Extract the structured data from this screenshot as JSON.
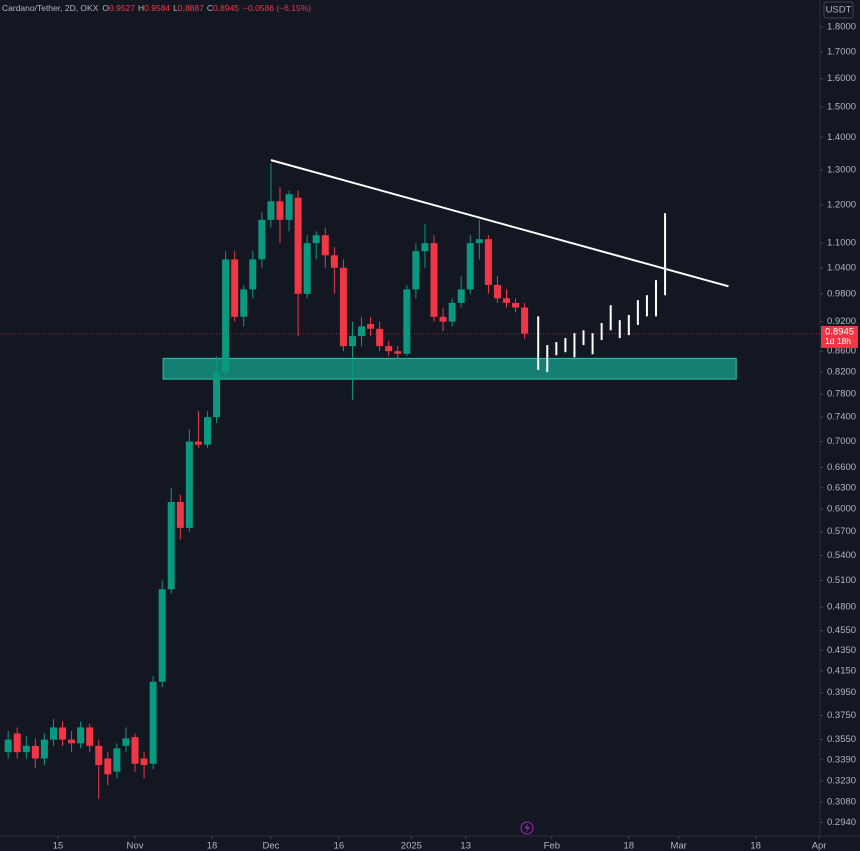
{
  "chart_data": {
    "type": "candlestick",
    "header": {
      "title": "Cardano/Tether, 2D, OKX",
      "ohlc": [
        {
          "label": "O",
          "value": "0.9527"
        },
        {
          "label": "H",
          "value": "0.9584"
        },
        {
          "label": "L",
          "value": "0.8887"
        },
        {
          "label": "C",
          "value": "0.8945"
        }
      ],
      "change": "−0.0586 (−6.15%)"
    },
    "currency": "USDT",
    "log_scale": true,
    "up_color": "#089981",
    "down_color": "#f23645",
    "xlim": [
      1.2,
      182.2
    ],
    "ylim": [
      0.285,
      1.914
    ],
    "xticks": [
      {
        "value": 14,
        "label": "15"
      },
      {
        "value": 31,
        "label": "Nov"
      },
      {
        "value": 48,
        "label": "18"
      },
      {
        "value": 61,
        "label": "Dec"
      },
      {
        "value": 76,
        "label": "16"
      },
      {
        "value": 92,
        "label": "2025"
      },
      {
        "value": 104,
        "label": "13"
      },
      {
        "value": 123,
        "label": "Feb"
      },
      {
        "value": 140,
        "label": "18"
      },
      {
        "value": 151,
        "label": "Mar"
      },
      {
        "value": 168,
        "label": "18"
      },
      {
        "value": 182,
        "label": "Apr"
      }
    ],
    "yticks": [
      {
        "value": 1.8,
        "label": "1.8000"
      },
      {
        "value": 1.7,
        "label": "1.7000"
      },
      {
        "value": 1.6,
        "label": "1.6000"
      },
      {
        "value": 1.5,
        "label": "1.5000"
      },
      {
        "value": 1.4,
        "label": "1.4000"
      },
      {
        "value": 1.3,
        "label": "1.3000"
      },
      {
        "value": 1.2,
        "label": "1.2000"
      },
      {
        "value": 1.1,
        "label": "1.1000"
      },
      {
        "value": 1.04,
        "label": "1.0400"
      },
      {
        "value": 0.98,
        "label": "0.9800"
      },
      {
        "value": 0.92,
        "label": "0.9200"
      },
      {
        "value": 0.86,
        "label": "0.8600"
      },
      {
        "value": 0.82,
        "label": "0.8200"
      },
      {
        "value": 0.78,
        "label": "0.7800"
      },
      {
        "value": 0.74,
        "label": "0.7400"
      },
      {
        "value": 0.7,
        "label": "0.7000"
      },
      {
        "value": 0.66,
        "label": "0.6600"
      },
      {
        "value": 0.63,
        "label": "0.6300"
      },
      {
        "value": 0.6,
        "label": "0.6000"
      },
      {
        "value": 0.57,
        "label": "0.5700"
      },
      {
        "value": 0.54,
        "label": "0.5400"
      },
      {
        "value": 0.51,
        "label": "0.5100"
      },
      {
        "value": 0.48,
        "label": "0.4800"
      },
      {
        "value": 0.455,
        "label": "0.4550"
      },
      {
        "value": 0.435,
        "label": "0.4350"
      },
      {
        "value": 0.415,
        "label": "0.4150"
      },
      {
        "value": 0.395,
        "label": "0.3950"
      },
      {
        "value": 0.375,
        "label": "0.3750"
      },
      {
        "value": 0.355,
        "label": "0.3550"
      },
      {
        "value": 0.339,
        "label": "0.3390"
      },
      {
        "value": 0.323,
        "label": "0.3230"
      },
      {
        "value": 0.308,
        "label": "0.3080"
      },
      {
        "value": 0.294,
        "label": "0.2940"
      }
    ],
    "candles": {
      "x": [
        3,
        5,
        7,
        9,
        11,
        13,
        15,
        17,
        19,
        21,
        23,
        25,
        27,
        29,
        31,
        33,
        35,
        37,
        39,
        41,
        43,
        45,
        47,
        49,
        51,
        53,
        55,
        57,
        59,
        61,
        63,
        65,
        67,
        69,
        71,
        73,
        75,
        77,
        79,
        81,
        83,
        85,
        87,
        89,
        91,
        93,
        95,
        97,
        99,
        101,
        103,
        105,
        107,
        109,
        111,
        113,
        115,
        117
      ],
      "open": [
        0.345,
        0.36,
        0.345,
        0.35,
        0.34,
        0.355,
        0.365,
        0.355,
        0.352,
        0.365,
        0.35,
        0.34,
        0.33,
        0.35,
        0.357,
        0.34,
        0.336,
        0.405,
        0.5,
        0.61,
        0.575,
        0.7,
        0.695,
        0.74,
        0.82,
        1.06,
        0.93,
        0.99,
        1.06,
        1.16,
        1.21,
        1.16,
        1.22,
        0.98,
        1.1,
        1.12,
        1.07,
        1.04,
        0.87,
        0.89,
        0.915,
        0.905,
        0.87,
        0.86,
        0.855,
        0.99,
        1.08,
        1.1,
        0.93,
        0.92,
        0.96,
        0.99,
        1.1,
        1.11,
        1.0,
        0.97,
        0.96,
        0.95
      ],
      "high": [
        0.362,
        0.365,
        0.358,
        0.356,
        0.36,
        0.372,
        0.37,
        0.362,
        0.37,
        0.368,
        0.355,
        0.345,
        0.352,
        0.365,
        0.36,
        0.345,
        0.41,
        0.51,
        0.63,
        0.62,
        0.72,
        0.75,
        0.75,
        0.85,
        1.08,
        1.08,
        1.0,
        1.08,
        1.18,
        1.32,
        1.25,
        1.24,
        1.24,
        1.12,
        1.13,
        1.14,
        1.09,
        1.06,
        0.92,
        0.93,
        0.93,
        0.92,
        0.88,
        0.87,
        1.0,
        1.1,
        1.15,
        1.12,
        0.95,
        0.97,
        1.02,
        1.12,
        1.16,
        1.12,
        1.02,
        0.99,
        0.97,
        0.96
      ],
      "low": [
        0.34,
        0.34,
        0.34,
        0.333,
        0.335,
        0.35,
        0.35,
        0.345,
        0.348,
        0.345,
        0.31,
        0.32,
        0.325,
        0.345,
        0.33,
        0.325,
        0.332,
        0.4,
        0.495,
        0.56,
        0.57,
        0.69,
        0.69,
        0.73,
        0.81,
        0.92,
        0.91,
        0.97,
        1.04,
        1.14,
        1.1,
        1.13,
        0.89,
        0.97,
        1.06,
        1.04,
        0.98,
        0.86,
        0.77,
        0.87,
        0.89,
        0.86,
        0.85,
        0.845,
        0.85,
        0.97,
        1.04,
        0.92,
        0.9,
        0.91,
        0.95,
        0.98,
        1.06,
        0.98,
        0.96,
        0.95,
        0.94,
        0.885
      ],
      "close": [
        0.355,
        0.345,
        0.35,
        0.34,
        0.355,
        0.365,
        0.355,
        0.352,
        0.365,
        0.35,
        0.335,
        0.328,
        0.348,
        0.356,
        0.336,
        0.335,
        0.405,
        0.5,
        0.61,
        0.575,
        0.7,
        0.695,
        0.74,
        0.82,
        1.06,
        0.93,
        0.99,
        1.06,
        1.16,
        1.21,
        1.16,
        1.23,
        0.98,
        1.1,
        1.12,
        1.07,
        1.04,
        0.87,
        0.89,
        0.91,
        0.905,
        0.87,
        0.86,
        0.855,
        0.99,
        1.08,
        1.1,
        0.93,
        0.92,
        0.96,
        0.99,
        1.1,
        1.11,
        1.0,
        0.97,
        0.96,
        0.95,
        0.895
      ]
    },
    "projection": {
      "color": "#ffffff",
      "x": [
        120,
        122,
        124,
        126,
        128,
        130,
        132,
        134,
        136,
        138,
        140,
        142,
        144,
        146,
        148
      ],
      "high": [
        0.931,
        0.872,
        0.878,
        0.886,
        0.896,
        0.902,
        0.896,
        0.917,
        0.955,
        0.923,
        0.934,
        0.966,
        0.977,
        1.011,
        1.178
      ],
      "low": [
        0.824,
        0.82,
        0.852,
        0.858,
        0.848,
        0.872,
        0.854,
        0.882,
        0.902,
        0.886,
        0.892,
        0.913,
        0.931,
        0.931,
        0.977
      ]
    },
    "trendline": {
      "color": "#ffffff",
      "x": [
        61,
        162
      ],
      "y": [
        1.329,
        0.997
      ]
    },
    "support_zone": {
      "color": "#159a87",
      "x": [
        37.2,
        163.7
      ],
      "y": [
        0.807,
        0.846
      ]
    },
    "last_price": {
      "value": 0.8945,
      "countdown": "1d 18h",
      "color": "#f23645"
    }
  }
}
